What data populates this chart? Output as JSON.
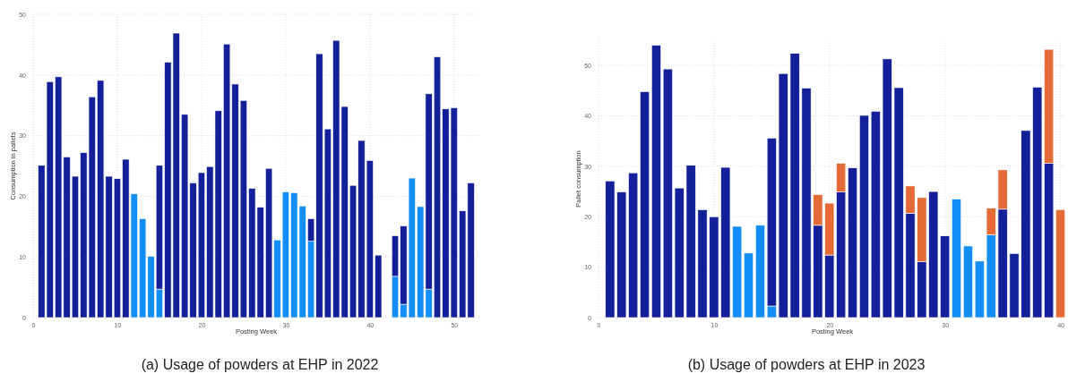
{
  "chart_data": [
    {
      "type": "bar",
      "stacked": true,
      "title": "(a) Usage of powders at EHP in 2022",
      "xlabel": "Posting Week",
      "ylabel": "Consumption in pallets",
      "x": [
        1,
        2,
        3,
        4,
        5,
        6,
        7,
        8,
        9,
        10,
        11,
        12,
        13,
        14,
        15,
        16,
        17,
        18,
        19,
        20,
        21,
        22,
        23,
        24,
        25,
        26,
        27,
        28,
        29,
        30,
        31,
        32,
        33,
        34,
        35,
        36,
        37,
        38,
        39,
        40,
        41,
        43,
        44,
        45,
        46,
        47,
        48,
        49,
        50,
        51,
        52
      ],
      "xlim": [
        0,
        53
      ],
      "xticks": [
        0,
        10,
        20,
        30,
        40,
        50
      ],
      "ylim": [
        0,
        50
      ],
      "yticks": [
        0,
        10,
        20,
        30,
        40,
        50
      ],
      "grid": true,
      "series": [
        {
          "color": "#148ef7",
          "values": [
            null,
            null,
            null,
            null,
            null,
            null,
            null,
            null,
            null,
            null,
            null,
            20.4,
            16.3,
            10.1,
            4.7,
            null,
            null,
            null,
            null,
            null,
            null,
            null,
            null,
            null,
            null,
            null,
            null,
            null,
            12.8,
            20.7,
            20.6,
            18.4,
            12.6,
            null,
            null,
            null,
            null,
            null,
            null,
            null,
            null,
            6.8,
            2.2,
            23.0,
            18.3,
            4.7,
            null,
            null,
            null,
            null,
            null
          ]
        },
        {
          "color": "#14209a",
          "values": [
            25.1,
            38.9,
            39.7,
            26.5,
            23.3,
            27.2,
            36.4,
            39.1,
            23.3,
            22.9,
            26.1,
            null,
            null,
            null,
            20.4,
            42.1,
            46.9,
            33.5,
            22.2,
            23.9,
            24.9,
            34.1,
            45.1,
            38.5,
            35.8,
            21.3,
            18.2,
            24.6,
            null,
            null,
            null,
            null,
            3.7,
            43.5,
            31.1,
            45.7,
            34.8,
            21.8,
            29.2,
            25.9,
            10.3,
            6.7,
            12.9,
            null,
            null,
            32.2,
            43.0,
            34.4,
            34.6,
            17.6,
            22.2
          ]
        }
      ]
    },
    {
      "type": "bar",
      "stacked": true,
      "title": "(b) Usage of powders at EHP in 2023",
      "xlabel": "Posting Week",
      "ylabel": "Pallet consumption",
      "x": [
        1,
        2,
        3,
        4,
        5,
        6,
        7,
        8,
        9,
        10,
        11,
        12,
        13,
        14,
        15,
        16,
        17,
        18,
        19,
        20,
        21,
        22,
        23,
        24,
        25,
        26,
        27,
        28,
        29,
        30,
        31,
        32,
        33,
        34,
        35,
        36,
        37,
        38,
        39,
        40
      ],
      "xlim": [
        0,
        40.5
      ],
      "xticks": [
        0,
        10,
        20,
        30,
        40
      ],
      "ylim": [
        0,
        55
      ],
      "yticks": [
        0,
        10,
        20,
        30,
        40,
        50
      ],
      "grid": true,
      "series": [
        {
          "color": "#148ef7",
          "values": [
            null,
            null,
            null,
            null,
            null,
            null,
            null,
            null,
            null,
            null,
            null,
            18.1,
            12.8,
            18.3,
            2.3,
            null,
            null,
            null,
            null,
            null,
            null,
            null,
            null,
            null,
            null,
            null,
            null,
            null,
            null,
            null,
            23.5,
            14.2,
            11.2,
            16.4,
            null,
            null,
            null,
            null,
            null,
            null
          ]
        },
        {
          "color": "#14209a",
          "values": [
            27.1,
            24.9,
            28.7,
            44.8,
            54.0,
            49.3,
            25.7,
            30.2,
            21.4,
            20.0,
            29.8,
            null,
            null,
            null,
            33.3,
            48.4,
            52.4,
            45.5,
            18.3,
            12.4,
            24.9,
            29.7,
            40.1,
            40.9,
            51.3,
            45.6,
            20.7,
            11.1,
            25.0,
            16.2,
            null,
            null,
            null,
            null,
            21.5,
            12.7,
            37.1,
            45.7,
            30.6,
            null
          ]
        },
        {
          "color": "#e56b36",
          "values": [
            null,
            null,
            null,
            null,
            null,
            null,
            null,
            null,
            null,
            null,
            null,
            null,
            null,
            null,
            null,
            null,
            null,
            null,
            6.1,
            10.3,
            5.7,
            null,
            null,
            null,
            null,
            null,
            5.4,
            12.7,
            null,
            null,
            null,
            null,
            null,
            5.3,
            7.8,
            null,
            null,
            null,
            22.6,
            21.4
          ]
        }
      ]
    }
  ]
}
